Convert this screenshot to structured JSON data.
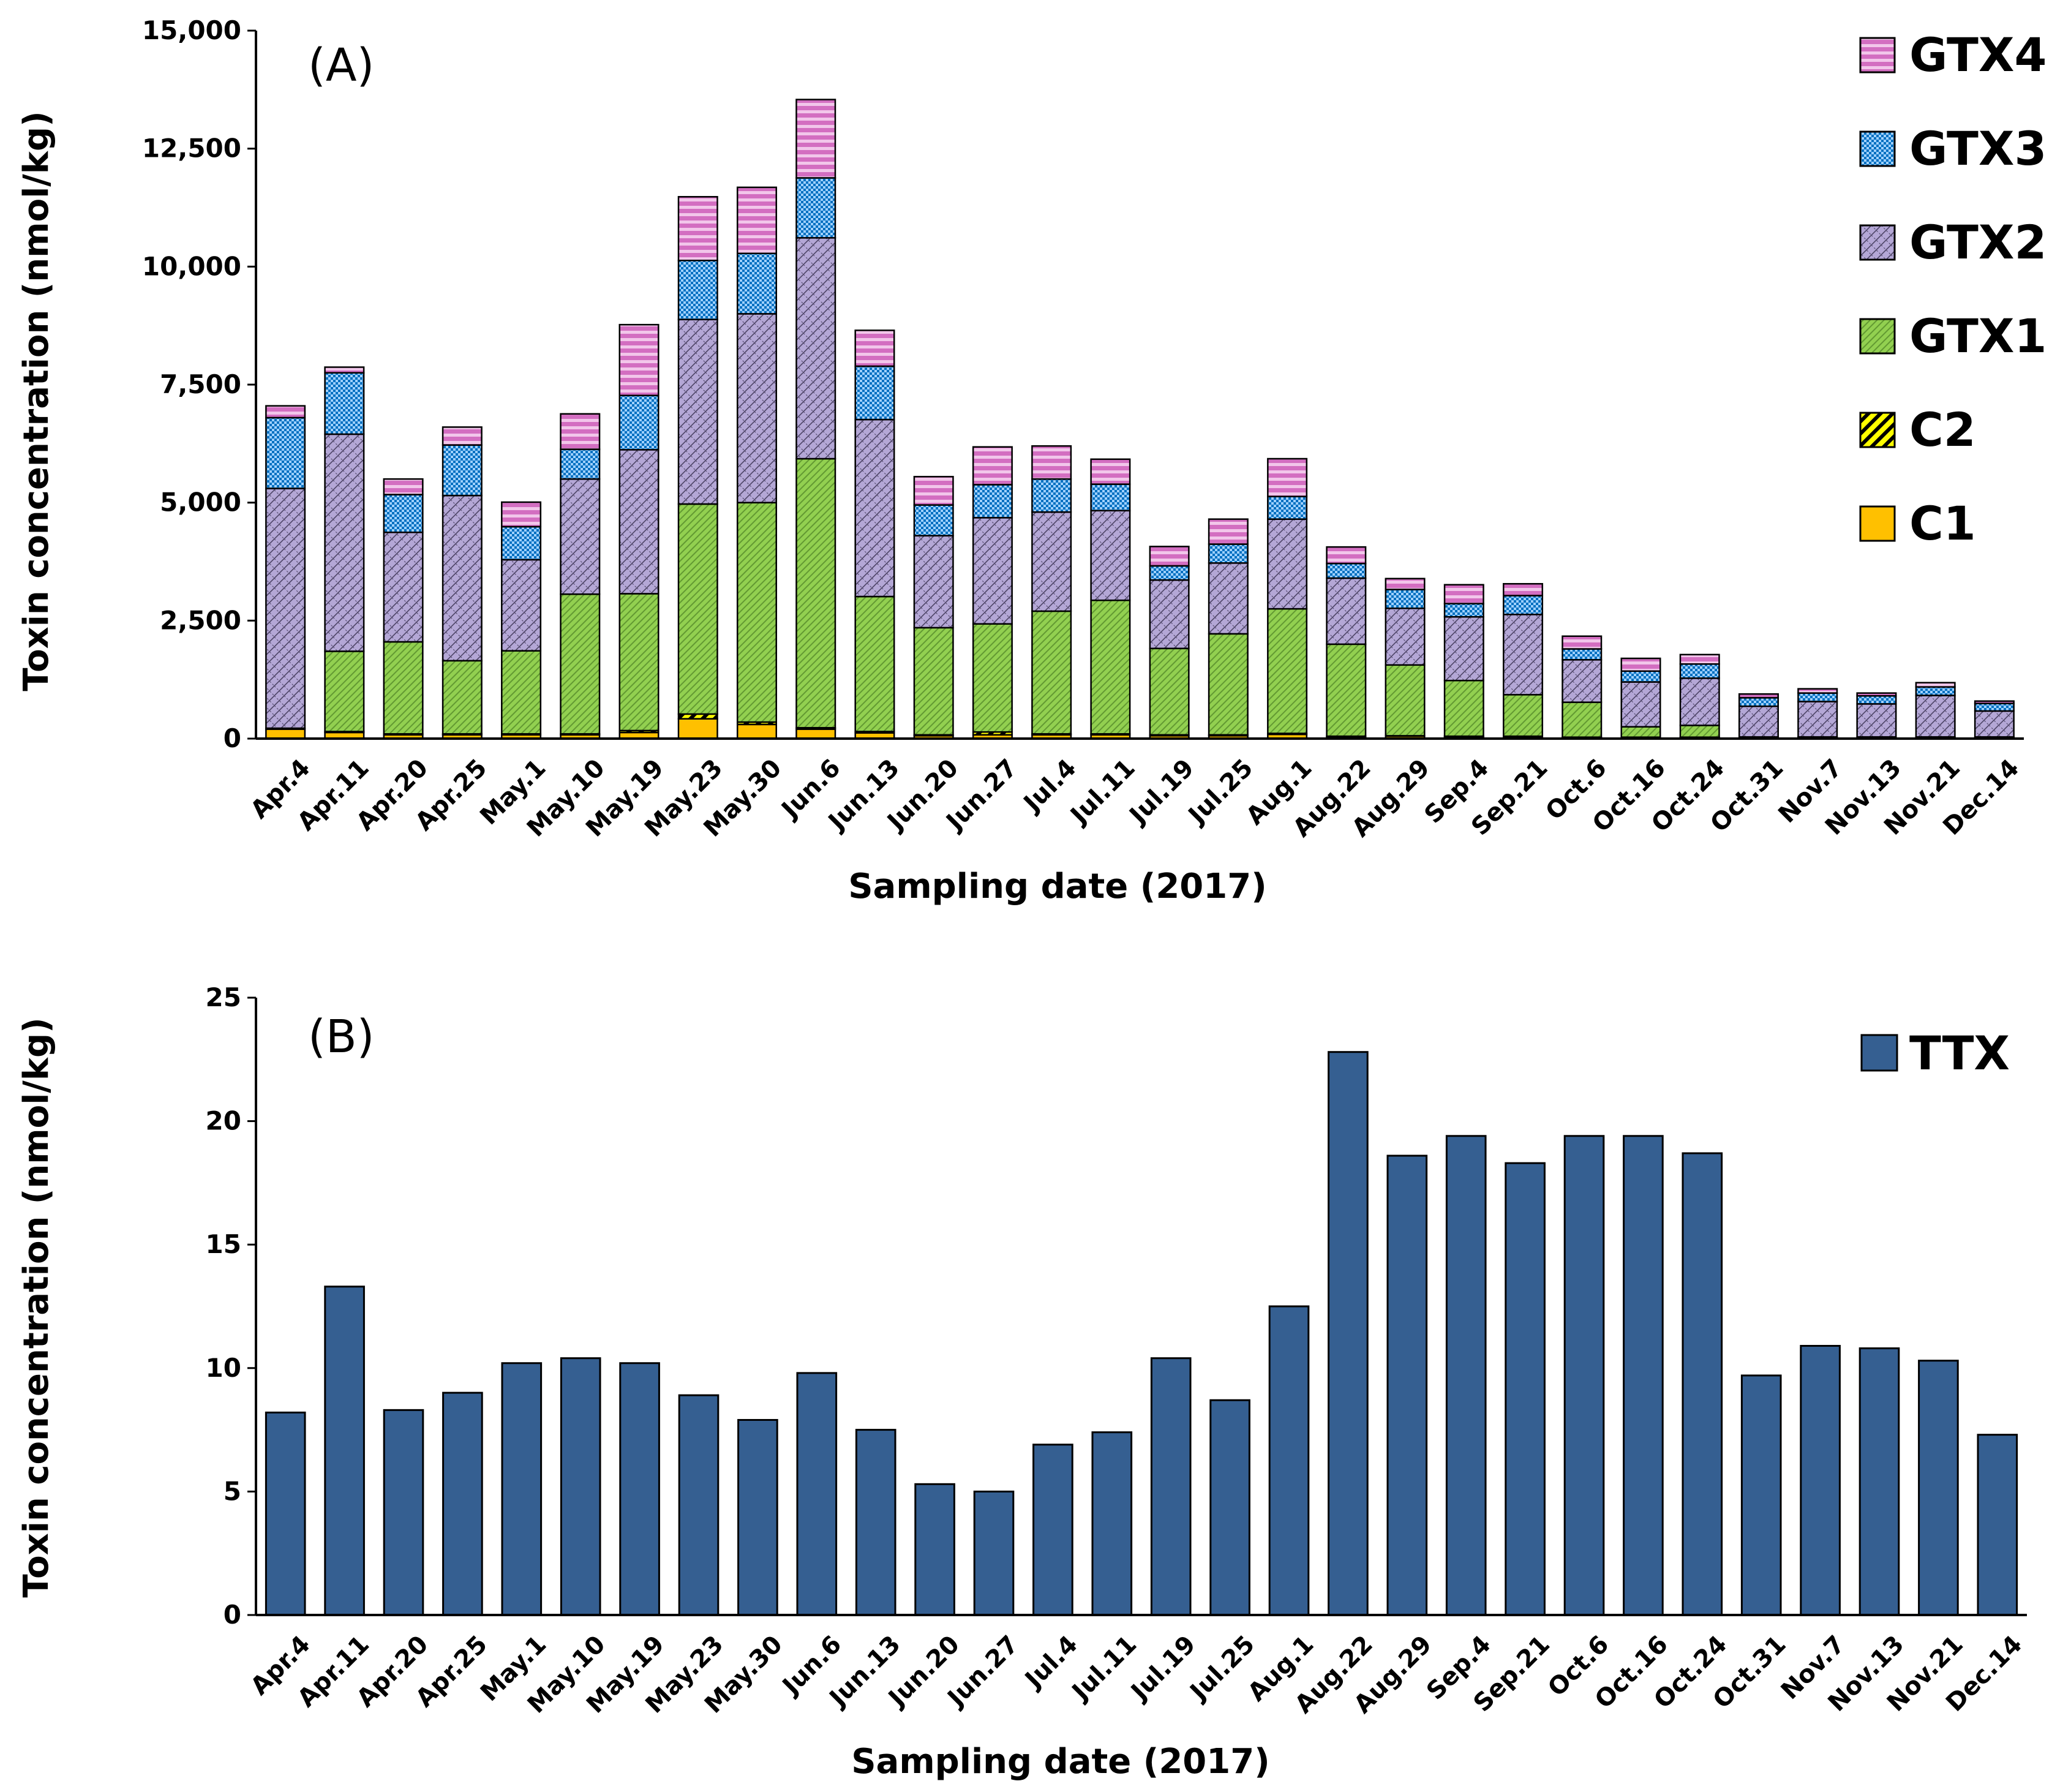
{
  "chart_data": [
    {
      "type": "stacked-bar",
      "panel_label": "(A)",
      "xlabel": "Sampling date (2017)",
      "ylabel": "Toxin concentration (nmol/kg)",
      "ylim": [
        0,
        15000
      ],
      "yticks": [
        0,
        2500,
        5000,
        7500,
        10000,
        12500,
        15000
      ],
      "ytick_labels": [
        "0",
        "2,500",
        "5,000",
        "7,500",
        "10,000",
        "12,500",
        "15,000"
      ],
      "legend_position": "top-right",
      "categories": [
        "Apr.4",
        "Apr.11",
        "Apr.20",
        "Apr.25",
        "May.1",
        "May.10",
        "May.19",
        "May.23",
        "May.30",
        "Jun.6",
        "Jun.13",
        "Jun.20",
        "Jun.27",
        "Jul.4",
        "Jul.11",
        "Jul.19",
        "Jul.25",
        "Aug.1",
        "Aug.22",
        "Aug.29",
        "Sep.4",
        "Sep.21",
        "Oct.6",
        "Oct.16",
        "Oct.24",
        "Oct.31",
        "Nov.7",
        "Nov.13",
        "Nov.21",
        "Dec.14"
      ],
      "series": [
        {
          "name": "C1",
          "color": "#FFC000",
          "pattern": "solid",
          "values": [
            200,
            130,
            80,
            80,
            80,
            80,
            130,
            420,
            300,
            200,
            120,
            60,
            80,
            80,
            80,
            60,
            60,
            90,
            40,
            50,
            40,
            40,
            20,
            20,
            20,
            10,
            10,
            10,
            10,
            10
          ]
        },
        {
          "name": "C2",
          "color": "#FFFF00",
          "pattern": "diagonal",
          "values": [
            20,
            20,
            20,
            20,
            20,
            20,
            40,
            100,
            50,
            30,
            30,
            20,
            60,
            20,
            20,
            20,
            20,
            20,
            10,
            10,
            10,
            10,
            10,
            10,
            10,
            5,
            5,
            5,
            5,
            5
          ]
        },
        {
          "name": "GTX1",
          "color": "#92D050",
          "pattern": "dense-diagonal",
          "values": [
            0,
            1700,
            1950,
            1550,
            1760,
            2960,
            2900,
            4450,
            4650,
            5700,
            2860,
            2270,
            2290,
            2600,
            2830,
            1830,
            2140,
            2640,
            1950,
            1500,
            1180,
            880,
            740,
            220,
            250,
            20,
            20,
            20,
            20,
            20
          ]
        },
        {
          "name": "GTX2",
          "color": "#B4A7D6",
          "pattern": "crosshatch",
          "values": [
            5080,
            4600,
            2320,
            3500,
            1930,
            2440,
            3050,
            3910,
            4000,
            4680,
            3750,
            1950,
            2250,
            2100,
            1900,
            1450,
            1500,
            1900,
            1400,
            1200,
            1350,
            1700,
            900,
            950,
            1000,
            650,
            750,
            700,
            880,
            550
          ]
        },
        {
          "name": "GTX3",
          "color": "#0070C0",
          "pattern": "checker",
          "values": [
            1500,
            1300,
            800,
            1070,
            700,
            630,
            1150,
            1250,
            1280,
            1270,
            1130,
            650,
            700,
            700,
            560,
            300,
            400,
            480,
            310,
            400,
            280,
            400,
            230,
            230,
            300,
            180,
            180,
            170,
            180,
            160
          ]
        },
        {
          "name": "GTX4",
          "color": "#D36EC1",
          "pattern": "horizontal",
          "values": [
            250,
            120,
            330,
            380,
            520,
            750,
            1500,
            1350,
            1400,
            1660,
            760,
            600,
            800,
            700,
            530,
            410,
            530,
            800,
            350,
            230,
            400,
            250,
            270,
            270,
            200,
            80,
            90,
            60,
            90,
            50
          ]
        }
      ]
    },
    {
      "type": "bar",
      "panel_label": "(B)",
      "xlabel": "Sampling date (2017)",
      "ylabel": "Toxin concentration (nmol/kg)",
      "ylim": [
        0,
        25
      ],
      "yticks": [
        0,
        5,
        10,
        15,
        20,
        25
      ],
      "ytick_labels": [
        "0",
        "5",
        "10",
        "15",
        "20",
        "25"
      ],
      "legend_position": "top-right",
      "categories": [
        "Apr.4",
        "Apr.11",
        "Apr.20",
        "Apr.25",
        "May.1",
        "May.10",
        "May.19",
        "May.23",
        "May.30",
        "Jun.6",
        "Jun.13",
        "Jun.20",
        "Jun.27",
        "Jul.4",
        "Jul.11",
        "Jul.19",
        "Jul.25",
        "Aug.1",
        "Aug.22",
        "Aug.29",
        "Sep.4",
        "Sep.21",
        "Oct.6",
        "Oct.16",
        "Oct.24",
        "Oct.31",
        "Nov.7",
        "Nov.13",
        "Nov.21",
        "Dec.14"
      ],
      "series": [
        {
          "name": "TTX",
          "color": "#355F91",
          "values": [
            8.2,
            13.3,
            8.3,
            9.0,
            10.2,
            10.4,
            10.2,
            8.9,
            7.9,
            9.8,
            7.5,
            5.3,
            5.0,
            6.9,
            7.4,
            10.4,
            8.7,
            12.5,
            22.8,
            18.6,
            19.4,
            18.3,
            19.4,
            19.4,
            18.7,
            9.7,
            10.9,
            10.8,
            10.3,
            7.3
          ]
        }
      ]
    }
  ]
}
